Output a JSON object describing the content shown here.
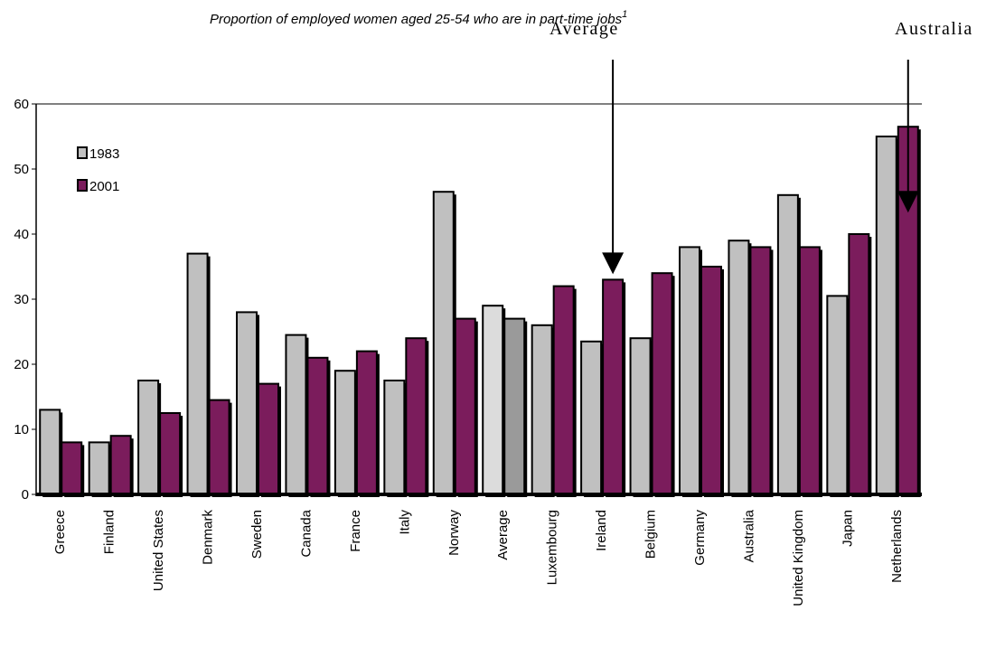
{
  "chart_data": {
    "type": "bar",
    "title": "Proportion of employed women aged 25-54 who are in part-time jobs",
    "title_superscript": "1",
    "categories": [
      "Greece",
      "Finland",
      "United States",
      "Denmark",
      "Sweden",
      "Canada",
      "France",
      "Italy",
      "Norway",
      "Average",
      "Luxembourg",
      "Ireland",
      "Belgium",
      "Germany",
      "Australia",
      "United Kingdom",
      "Japan",
      "Netherlands"
    ],
    "series": [
      {
        "name": "1983",
        "color": "#c0c0c0",
        "values": [
          13,
          8,
          17.5,
          37,
          28,
          24.5,
          19,
          17.5,
          46.5,
          29,
          26,
          23.5,
          24,
          38,
          39,
          46,
          30.5,
          55
        ]
      },
      {
        "name": "2001",
        "color": "#7b1c5c",
        "values": [
          8,
          9,
          12.5,
          14.5,
          17,
          21,
          22,
          24,
          27,
          27,
          32,
          33,
          34,
          35,
          38,
          38,
          40,
          56.5
        ]
      }
    ],
    "highlight": {
      "category": "Average",
      "colors": [
        "#dcdcdc",
        "#9a9a9a"
      ]
    },
    "ylim": [
      0,
      60
    ],
    "yticks": [
      0,
      10,
      20,
      30,
      40,
      50,
      60
    ],
    "xlabel": "",
    "ylabel": "",
    "grid": false,
    "legend_position": "top-left"
  },
  "annotations": [
    {
      "text": "Average",
      "target_category": "Ireland",
      "target_series": "2001"
    },
    {
      "text": "Australia",
      "target_category": "Netherlands",
      "target_series": "2001"
    }
  ]
}
